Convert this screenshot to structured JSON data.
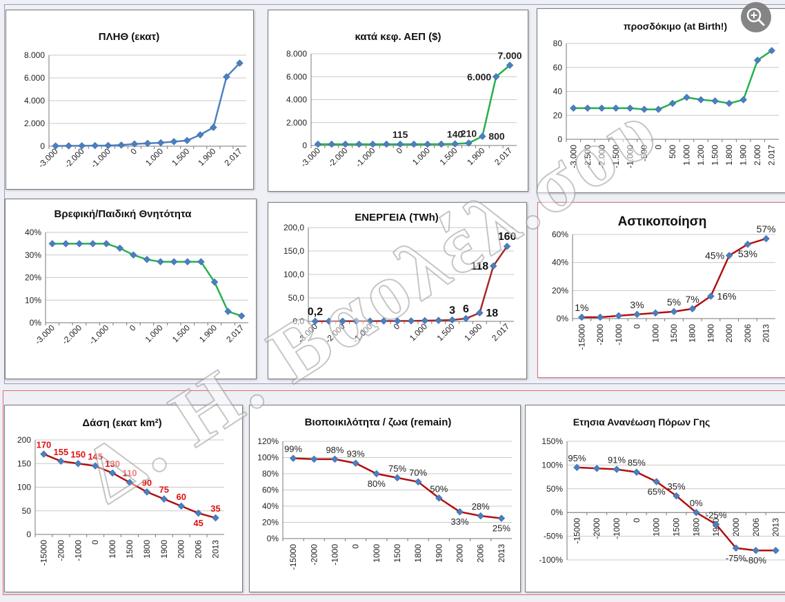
{
  "watermark": "Δ. Η. Βαολέλ.σου",
  "zoom_icon": "zoom-in-icon",
  "colors": {
    "marker": "#4a7fc1",
    "blue": "#4f81bd",
    "green": "#22b14c",
    "red": "#b01010",
    "label_red": "#e01010",
    "grid": "#c8c8c8",
    "text": "#222222"
  },
  "chart_data": [
    {
      "id": "c1",
      "type": "line",
      "title": "ΠΛΗΘ (εκατ)",
      "line_color": "#4f81bd",
      "categories": [
        "-3.000",
        "",
        "-2.000",
        "",
        "-1.000",
        "",
        "0",
        "",
        "1.000",
        "",
        "1.500",
        "",
        "1.900",
        "",
        "2.017"
      ],
      "x": [
        -3000,
        -2500,
        -2000,
        -1500,
        -1000,
        -500,
        0,
        500,
        1000,
        1200,
        1500,
        1800,
        1900,
        2000,
        2017
      ],
      "values": [
        20,
        30,
        40,
        50,
        60,
        100,
        200,
        250,
        300,
        400,
        500,
        1000,
        1650,
        6100,
        7300
      ],
      "ylim": [
        0,
        8000
      ],
      "yticks": [
        "0",
        "2.000",
        "4.000",
        "6.000",
        "8.000"
      ],
      "data_labels": []
    },
    {
      "id": "c2",
      "type": "line",
      "title": "κατά κεφ. ΑΕΠ ($)",
      "line_color": "#22b14c",
      "categories": [
        "-3.000",
        "",
        "-2.000",
        "",
        "-1.000",
        "",
        "0",
        "",
        "1.000",
        "",
        "1.500",
        "",
        "1.900",
        "",
        "2.017"
      ],
      "values": [
        115,
        115,
        115,
        115,
        115,
        115,
        115,
        115,
        115,
        120,
        140,
        210,
        800,
        6000,
        7000
      ],
      "ylim": [
        0,
        8000
      ],
      "yticks": [
        "0",
        "2.000",
        "4.000",
        "6.000",
        "8.000"
      ],
      "data_labels": [
        {
          "i": 6,
          "text": "115",
          "pos": "above"
        },
        {
          "i": 10,
          "text": "140",
          "pos": "above"
        },
        {
          "i": 11,
          "text": "210",
          "pos": "above"
        },
        {
          "i": 12,
          "text": "800",
          "pos": "right"
        },
        {
          "i": 13,
          "text": "6.000",
          "pos": "left"
        },
        {
          "i": 14,
          "text": "7.000",
          "pos": "above"
        }
      ]
    },
    {
      "id": "c3",
      "type": "line",
      "title": "προσδόκιμο (at Birth!)",
      "line_color": "#22b14c",
      "categories": [
        "-3.000",
        "-2.500",
        "-2.000",
        "-1.500",
        "-1.000",
        "-500",
        "0",
        "500",
        "1.000",
        "1.200",
        "1.500",
        "1.800",
        "1.900",
        "2.000",
        "2.017"
      ],
      "values": [
        26,
        26,
        26,
        26,
        26,
        25,
        25,
        30,
        35,
        33,
        32,
        30,
        33,
        66,
        74
      ],
      "ylim": [
        0,
        80
      ],
      "yticks": [
        "0",
        "20",
        "40",
        "60",
        "80"
      ],
      "data_labels": []
    },
    {
      "id": "c4",
      "type": "line",
      "title": "Βρεφική/Παιδική Θνητότητα",
      "line_color": "#22b14c",
      "categories": [
        "-3.000",
        "",
        "-2.000",
        "",
        "-1.000",
        "",
        "0",
        "",
        "1.000",
        "",
        "1.500",
        "",
        "1.900",
        "",
        "2.017"
      ],
      "values": [
        35,
        35,
        35,
        35,
        35,
        33,
        30,
        28,
        27,
        27,
        27,
        27,
        18,
        5,
        3
      ],
      "ylim": [
        0,
        40
      ],
      "yticks": [
        "0%",
        "10%",
        "20%",
        "30%",
        "40%"
      ],
      "data_labels": []
    },
    {
      "id": "c5",
      "type": "line",
      "title": "ΕΝΕΡΓΕΙΑ (TWh)",
      "line_color": "#a52a2a",
      "categories": [
        "-3.000",
        "",
        "-2.000",
        "",
        "-1.000",
        "",
        "0",
        "",
        "1.000",
        "",
        "1.500",
        "",
        "1.900",
        "",
        "2.017"
      ],
      "values": [
        0.2,
        0.3,
        0.4,
        0.5,
        0.6,
        0.7,
        0.8,
        1,
        1.5,
        2,
        3,
        6,
        18,
        118,
        160
      ],
      "ylim": [
        0,
        200
      ],
      "yticks": [
        "0,0",
        "50,0",
        "100,0",
        "150,0",
        "200,0"
      ],
      "data_labels": [
        {
          "i": 0,
          "text": "0,2",
          "pos": "above"
        },
        {
          "i": 10,
          "text": "3",
          "pos": "above"
        },
        {
          "i": 11,
          "text": "6",
          "pos": "above"
        },
        {
          "i": 12,
          "text": "18",
          "pos": "right"
        },
        {
          "i": 13,
          "text": "118",
          "pos": "left"
        },
        {
          "i": 14,
          "text": "160",
          "pos": "above"
        }
      ]
    },
    {
      "id": "c6",
      "type": "line",
      "title": "Αστικοποίηση",
      "line_color": "#b01010",
      "categories": [
        "-15000",
        "-2000",
        "-1000",
        "0",
        "1000",
        "1500",
        "1800",
        "1900",
        "2000",
        "2006",
        "2013"
      ],
      "values": [
        1,
        1,
        2,
        3,
        4,
        5,
        7,
        16,
        45,
        53,
        57
      ],
      "ylim": [
        0,
        60
      ],
      "yticks": [
        "0%",
        "20%",
        "40%",
        "60%"
      ],
      "data_labels": [
        {
          "i": 0,
          "text": "1%",
          "pos": "above"
        },
        {
          "i": 3,
          "text": "3%",
          "pos": "above"
        },
        {
          "i": 5,
          "text": "5%",
          "pos": "above"
        },
        {
          "i": 6,
          "text": "7%",
          "pos": "above"
        },
        {
          "i": 7,
          "text": "16%",
          "pos": "right"
        },
        {
          "i": 8,
          "text": "45%",
          "pos": "left"
        },
        {
          "i": 9,
          "text": "53%",
          "pos": "below"
        },
        {
          "i": 10,
          "text": "57%",
          "pos": "above"
        }
      ]
    },
    {
      "id": "c7",
      "type": "line",
      "title": "Δάση (εκατ km²)",
      "line_color": "#b01010",
      "categories": [
        "-15000",
        "-2000",
        "-1000",
        "0",
        "1000",
        "1500",
        "1800",
        "1900",
        "2000",
        "2006",
        "2013"
      ],
      "values": [
        170,
        155,
        150,
        145,
        130,
        110,
        90,
        75,
        60,
        45,
        35
      ],
      "ylim": [
        0,
        200
      ],
      "yticks": [
        "0",
        "50",
        "100",
        "150",
        "200"
      ],
      "data_labels": [
        {
          "i": 0,
          "text": "170",
          "pos": "above"
        },
        {
          "i": 1,
          "text": "155",
          "pos": "above"
        },
        {
          "i": 2,
          "text": "150",
          "pos": "above"
        },
        {
          "i": 3,
          "text": "145",
          "pos": "above"
        },
        {
          "i": 4,
          "text": "130",
          "pos": "above"
        },
        {
          "i": 5,
          "text": "110",
          "pos": "above"
        },
        {
          "i": 6,
          "text": "90",
          "pos": "above"
        },
        {
          "i": 7,
          "text": "75",
          "pos": "above"
        },
        {
          "i": 8,
          "text": "60",
          "pos": "above"
        },
        {
          "i": 9,
          "text": "45",
          "pos": "below"
        },
        {
          "i": 10,
          "text": "35",
          "pos": "above"
        }
      ]
    },
    {
      "id": "c8",
      "type": "line",
      "title": "Βιοποικιλότητα / ζωα (remain)",
      "line_color": "#b01010",
      "categories": [
        "-15000",
        "-2000",
        "-1000",
        "0",
        "1000",
        "1500",
        "1800",
        "1900",
        "2000",
        "2006",
        "2013"
      ],
      "values": [
        99,
        98,
        98,
        93,
        80,
        75,
        70,
        50,
        33,
        28,
        25
      ],
      "ylim": [
        0,
        120
      ],
      "yticks": [
        "0%",
        "20%",
        "40%",
        "60%",
        "80%",
        "100%",
        "120%"
      ],
      "data_labels": [
        {
          "i": 0,
          "text": "99%",
          "pos": "above"
        },
        {
          "i": 2,
          "text": "98%",
          "pos": "above"
        },
        {
          "i": 3,
          "text": "93%",
          "pos": "above"
        },
        {
          "i": 4,
          "text": "80%",
          "pos": "below"
        },
        {
          "i": 5,
          "text": "75%",
          "pos": "above"
        },
        {
          "i": 6,
          "text": "70%",
          "pos": "above"
        },
        {
          "i": 7,
          "text": "50%",
          "pos": "above"
        },
        {
          "i": 8,
          "text": "33%",
          "pos": "below"
        },
        {
          "i": 9,
          "text": "28%",
          "pos": "above"
        },
        {
          "i": 10,
          "text": "25%",
          "pos": "below"
        }
      ]
    },
    {
      "id": "c9",
      "type": "line",
      "title": "Ετησια Ανανέωση Πόρων Γης",
      "line_color": "#b01010",
      "categories": [
        "-15000",
        "-2000",
        "-1000",
        "0",
        "1000",
        "1500",
        "1800",
        "1900",
        "2000",
        "2006",
        "2013"
      ],
      "values": [
        95,
        93,
        91,
        85,
        65,
        35,
        0,
        -25,
        -75,
        -80,
        -80
      ],
      "ylim": [
        -100,
        150
      ],
      "yticks": [
        "-100%",
        "-50%",
        "0%",
        "50%",
        "100%",
        "150%"
      ],
      "data_labels": [
        {
          "i": 0,
          "text": "95%",
          "pos": "above"
        },
        {
          "i": 2,
          "text": "91%",
          "pos": "above"
        },
        {
          "i": 3,
          "text": "85%",
          "pos": "above"
        },
        {
          "i": 4,
          "text": "65%",
          "pos": "below"
        },
        {
          "i": 5,
          "text": "35%",
          "pos": "above"
        },
        {
          "i": 6,
          "text": "0%",
          "pos": "above"
        },
        {
          "i": 7,
          "text": "-25%",
          "pos": "above"
        },
        {
          "i": 8,
          "text": "-75%",
          "pos": "below"
        },
        {
          "i": 9,
          "text": "-80%",
          "pos": "below"
        }
      ]
    }
  ]
}
